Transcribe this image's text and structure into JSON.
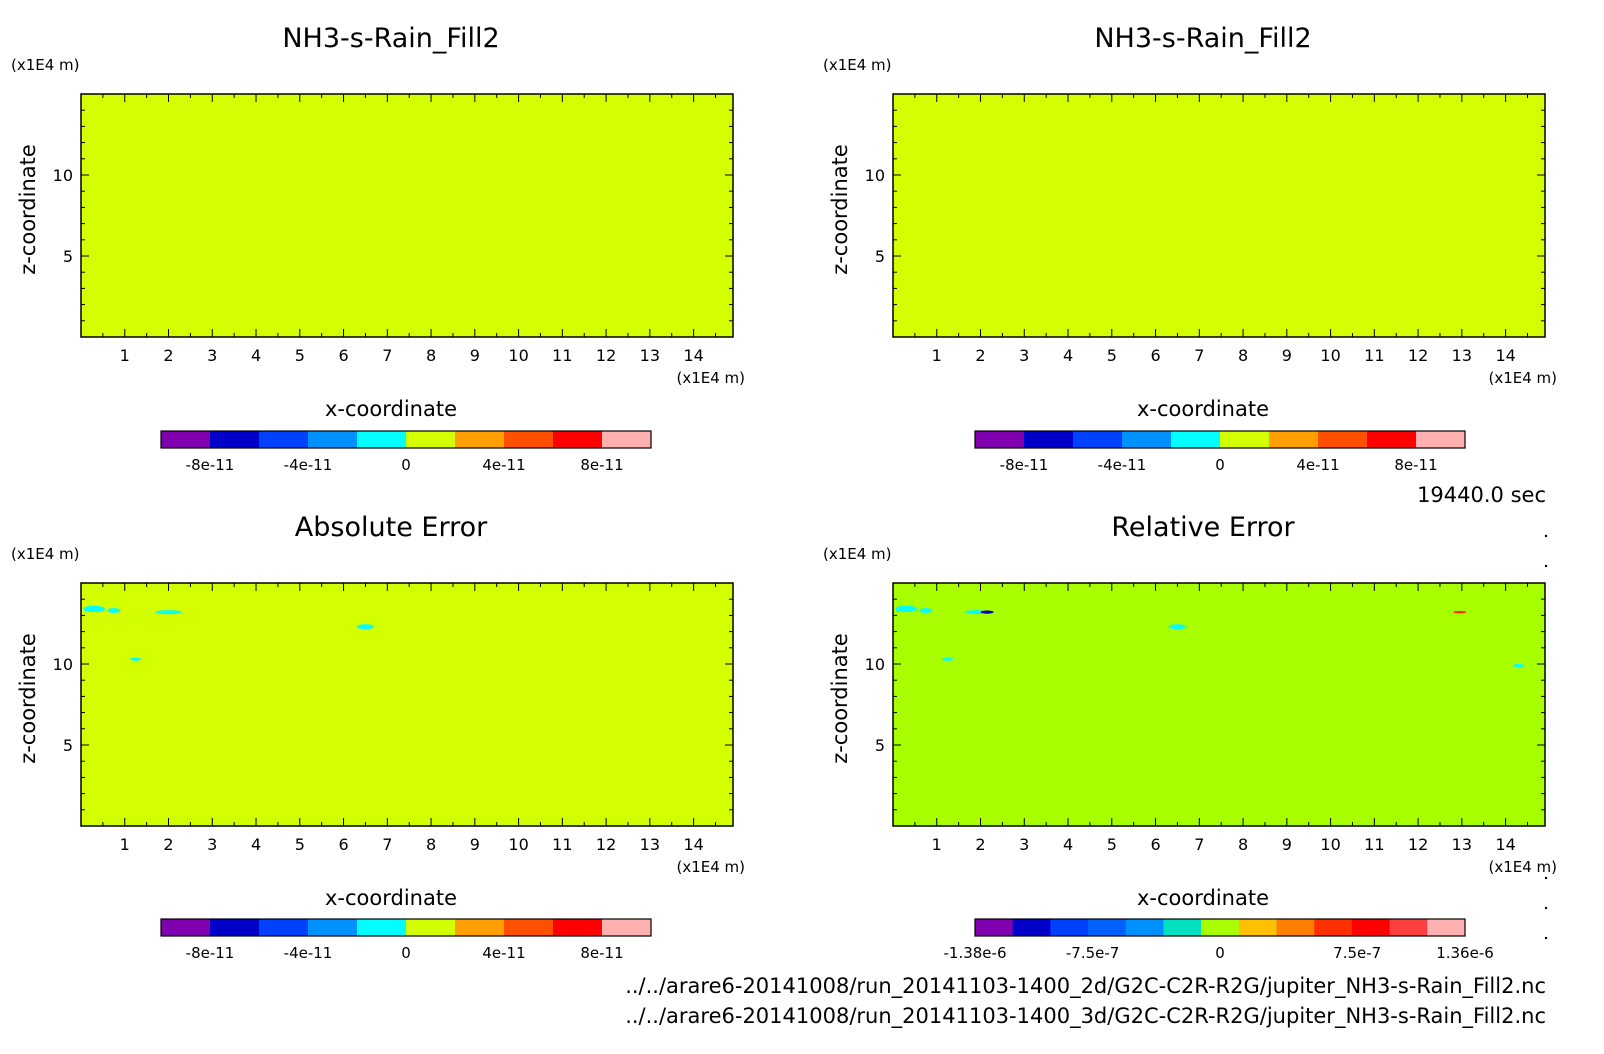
{
  "chart_data": [
    {
      "type": "heatmap",
      "title": "NH3-s-Rain_Fill2",
      "xlabel": "x-coordinate",
      "ylabel": "z-coordinate",
      "x_unit": "(x1E4 m)",
      "y_unit": "(x1E4 m)",
      "x_ticks": [
        1,
        2,
        3,
        4,
        5,
        6,
        7,
        8,
        9,
        10,
        11,
        12,
        13,
        14
      ],
      "y_ticks": [
        5,
        10
      ],
      "xlim": [
        0,
        14.9
      ],
      "ylim": [
        0,
        15
      ],
      "field_color": "#d4ff00",
      "spots": [],
      "colorbar": {
        "colors": [
          "#8000b0",
          "#0000c8",
          "#0040ff",
          "#0090ff",
          "#00ffff",
          "#d4ff00",
          "#ffa000",
          "#ff5000",
          "#ff0000",
          "#ffb0b0"
        ],
        "tick_labels": [
          "-8e-11",
          "-4e-11",
          "0",
          "4e-11",
          "8e-11"
        ],
        "tick_positions": [
          0.1,
          0.3,
          0.5,
          0.7,
          0.9
        ]
      }
    },
    {
      "type": "heatmap",
      "title": "NH3-s-Rain_Fill2",
      "xlabel": "x-coordinate",
      "ylabel": "z-coordinate",
      "x_unit": "(x1E4 m)",
      "y_unit": "(x1E4 m)",
      "x_ticks": [
        1,
        2,
        3,
        4,
        5,
        6,
        7,
        8,
        9,
        10,
        11,
        12,
        13,
        14
      ],
      "y_ticks": [
        5,
        10
      ],
      "xlim": [
        0,
        14.9
      ],
      "ylim": [
        0,
        15
      ],
      "field_color": "#d4ff00",
      "spots": [],
      "colorbar": {
        "colors": [
          "#8000b0",
          "#0000c8",
          "#0040ff",
          "#0090ff",
          "#00ffff",
          "#d4ff00",
          "#ffa000",
          "#ff5000",
          "#ff0000",
          "#ffb0b0"
        ],
        "tick_labels": [
          "-8e-11",
          "-4e-11",
          "0",
          "4e-11",
          "8e-11"
        ],
        "tick_positions": [
          0.1,
          0.3,
          0.5,
          0.7,
          0.9
        ]
      }
    },
    {
      "type": "heatmap",
      "title": "Absolute Error",
      "xlabel": "x-coordinate",
      "ylabel": "z-coordinate",
      "x_unit": "(x1E4 m)",
      "y_unit": "(x1E4 m)",
      "x_ticks": [
        1,
        2,
        3,
        4,
        5,
        6,
        7,
        8,
        9,
        10,
        11,
        12,
        13,
        14
      ],
      "y_ticks": [
        5,
        10
      ],
      "xlim": [
        0,
        14.9
      ],
      "ylim": [
        0,
        15
      ],
      "field_color": "#d4ff00",
      "spots": [
        {
          "x": 0.3,
          "z": 13.4,
          "rx": 0.25,
          "rz": 0.2,
          "color": "#00ffff"
        },
        {
          "x": 0.75,
          "z": 13.3,
          "rx": 0.15,
          "rz": 0.15,
          "color": "#00ffff"
        },
        {
          "x": 2.0,
          "z": 13.2,
          "rx": 0.3,
          "rz": 0.12,
          "color": "#00ffff"
        },
        {
          "x": 6.5,
          "z": 12.3,
          "rx": 0.2,
          "rz": 0.15,
          "color": "#00ffff"
        },
        {
          "x": 1.25,
          "z": 10.3,
          "rx": 0.13,
          "rz": 0.1,
          "color": "#00ffff"
        }
      ],
      "colorbar": {
        "colors": [
          "#8000b0",
          "#0000c8",
          "#0040ff",
          "#0090ff",
          "#00ffff",
          "#d4ff00",
          "#ffa000",
          "#ff5000",
          "#ff0000",
          "#ffb0b0"
        ],
        "tick_labels": [
          "-8e-11",
          "-4e-11",
          "0",
          "4e-11",
          "8e-11"
        ],
        "tick_positions": [
          0.1,
          0.3,
          0.5,
          0.7,
          0.9
        ]
      }
    },
    {
      "type": "heatmap",
      "title": "Relative Error",
      "xlabel": "x-coordinate",
      "ylabel": "z-coordinate",
      "x_unit": "(x1E4 m)",
      "y_unit": "(x1E4 m)",
      "x_ticks": [
        1,
        2,
        3,
        4,
        5,
        6,
        7,
        8,
        9,
        10,
        11,
        12,
        13,
        14
      ],
      "y_ticks": [
        5,
        10
      ],
      "xlim": [
        0,
        14.9
      ],
      "ylim": [
        0,
        15
      ],
      "field_color": "#a8ff00",
      "spots": [
        {
          "x": 0.3,
          "z": 13.4,
          "rx": 0.25,
          "rz": 0.2,
          "color": "#00ffff"
        },
        {
          "x": 0.75,
          "z": 13.3,
          "rx": 0.15,
          "rz": 0.15,
          "color": "#00ffff"
        },
        {
          "x": 1.9,
          "z": 13.2,
          "rx": 0.25,
          "rz": 0.12,
          "color": "#00ffff"
        },
        {
          "x": 2.15,
          "z": 13.2,
          "rx": 0.15,
          "rz": 0.1,
          "color": "#0000c8"
        },
        {
          "x": 6.5,
          "z": 12.3,
          "rx": 0.2,
          "rz": 0.15,
          "color": "#00ffff"
        },
        {
          "x": 1.25,
          "z": 10.3,
          "rx": 0.13,
          "rz": 0.1,
          "color": "#00ffff"
        },
        {
          "x": 12.95,
          "z": 13.2,
          "rx": 0.15,
          "rz": 0.08,
          "color": "#ff3000"
        },
        {
          "x": 14.3,
          "z": 9.9,
          "rx": 0.13,
          "rz": 0.1,
          "color": "#00ffff"
        }
      ],
      "colorbar": {
        "colors": [
          "#8000b0",
          "#0000c8",
          "#0040ff",
          "#0060ff",
          "#0090ff",
          "#00e0c0",
          "#a8ff00",
          "#ffc000",
          "#ff8000",
          "#ff3000",
          "#ff0000",
          "#ff4040",
          "#ffb0b0"
        ],
        "tick_labels": [
          "-1.38e-6",
          "-7.5e-7",
          "0",
          "7.5e-7",
          "1.36e-6"
        ],
        "tick_positions": [
          0.0,
          0.24,
          0.5,
          0.78,
          1.0
        ]
      }
    }
  ],
  "timestamp": "19440.0 sec",
  "footer": [
    "../../arare6-20141008/run_20141103-1400_2d/G2C-C2R-R2G/jupiter_NH3-s-Rain_Fill2.nc",
    "../../arare6-20141008/run_20141103-1400_3d/G2C-C2R-R2G/jupiter_NH3-s-Rain_Fill2.nc"
  ]
}
